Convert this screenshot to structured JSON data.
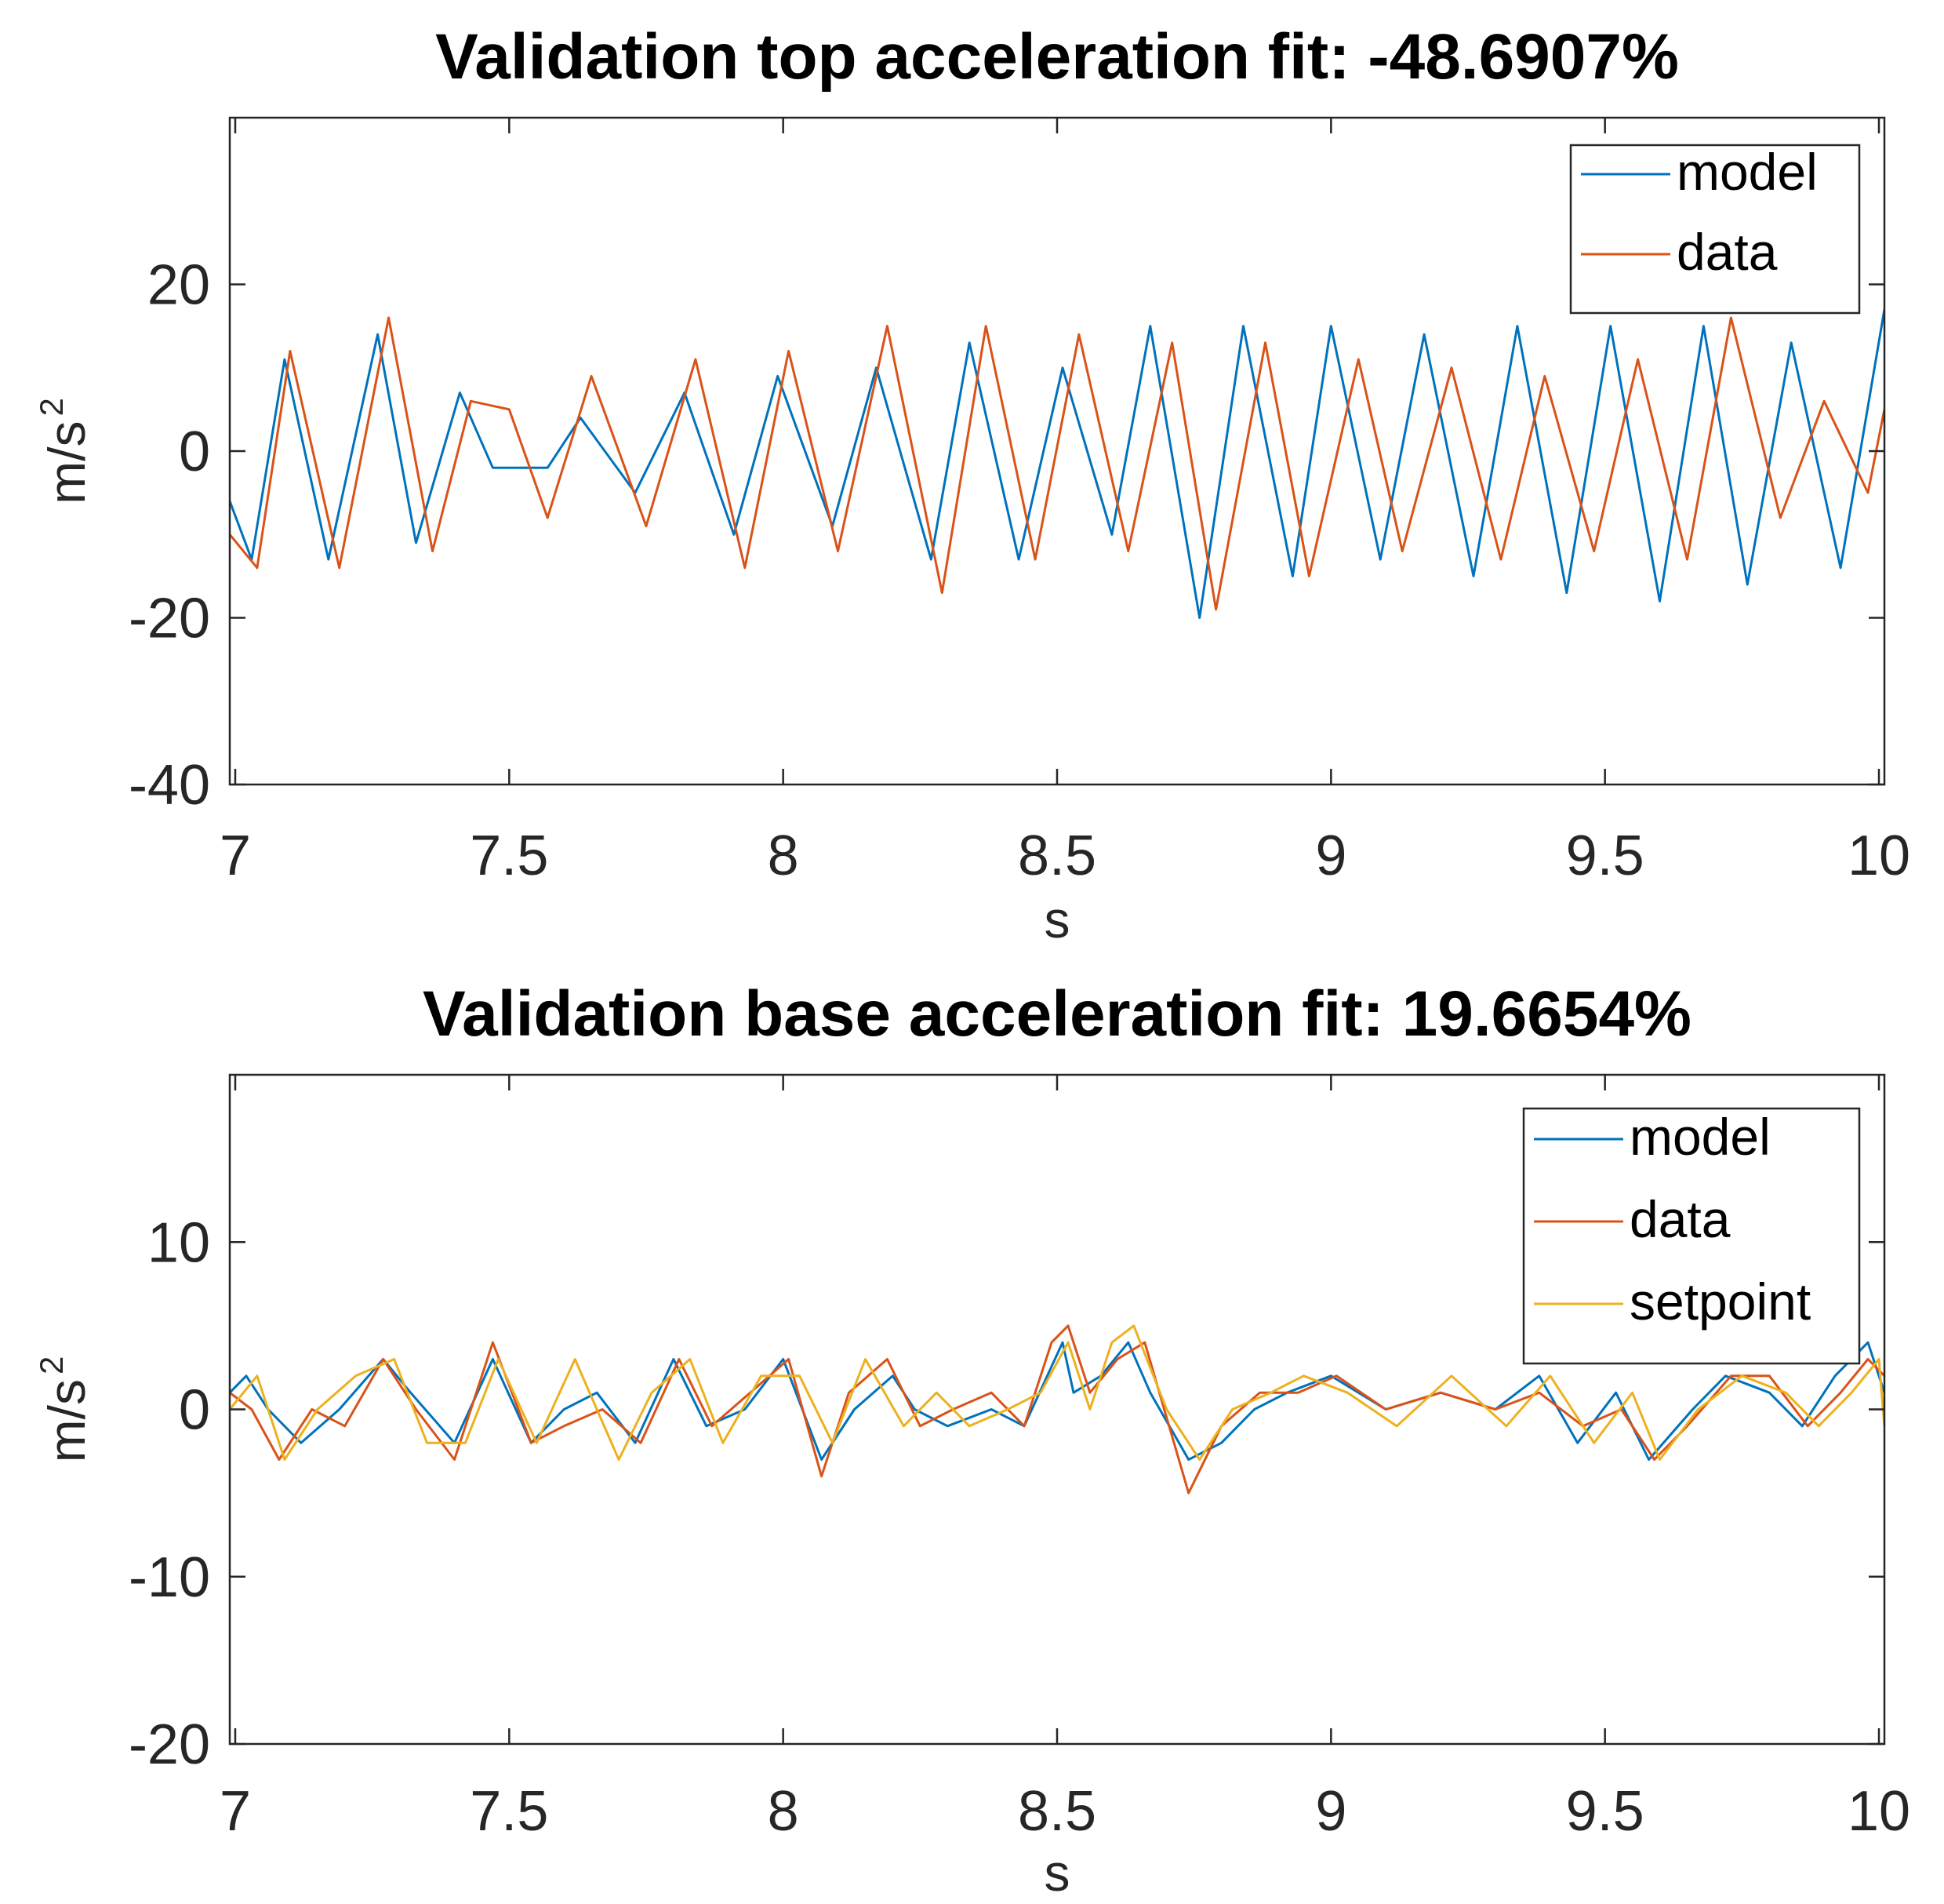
{
  "chart_data": [
    {
      "type": "line",
      "title": "Validation top acceleration fit: -48.6907%",
      "xlabel": "s",
      "ylabel": "m/s",
      "ylabel_superscript": "2",
      "xlim": [
        6.99,
        10.01
      ],
      "ylim": [
        -40,
        40
      ],
      "xticks": [
        7,
        7.5,
        8,
        8.5,
        9,
        9.5,
        10
      ],
      "xtick_labels": [
        "7",
        "7.5",
        "8",
        "8.5",
        "9",
        "9.5",
        "10"
      ],
      "yticks": [
        -40,
        -20,
        0,
        20
      ],
      "ytick_labels": [
        "-40",
        "-20",
        "0",
        "20"
      ],
      "legend": {
        "position": "top-right",
        "entries": [
          "model",
          "data"
        ]
      },
      "series": [
        {
          "name": "model",
          "color": "#0072BD",
          "x": [
            6.99,
            7.03,
            7.09,
            7.17,
            7.26,
            7.33,
            7.41,
            7.47,
            7.57,
            7.63,
            7.73,
            7.82,
            7.91,
            7.99,
            8.09,
            8.17,
            8.27,
            8.34,
            8.43,
            8.51,
            8.6,
            8.67,
            8.76,
            8.84,
            8.93,
            9.0,
            9.09,
            9.17,
            9.26,
            9.34,
            9.43,
            9.51,
            9.6,
            9.68,
            9.76,
            9.84,
            9.93,
            10.01
          ],
          "y": [
            -6,
            -13,
            11,
            -13,
            14,
            -11,
            7,
            -2,
            -2,
            4,
            -5,
            7,
            -10,
            9,
            -9,
            10,
            -13,
            13,
            -13,
            10,
            -10,
            15,
            -20,
            15,
            -15,
            15,
            -13,
            14,
            -15,
            15,
            -17,
            15,
            -18,
            15,
            -16,
            13,
            -14,
            17
          ]
        },
        {
          "name": "data",
          "color": "#D95319",
          "x": [
            6.99,
            7.04,
            7.1,
            7.19,
            7.28,
            7.36,
            7.43,
            7.5,
            7.57,
            7.65,
            7.75,
            7.84,
            7.93,
            8.01,
            8.1,
            8.19,
            8.29,
            8.37,
            8.46,
            8.54,
            8.63,
            8.71,
            8.79,
            8.88,
            8.96,
            9.05,
            9.13,
            9.22,
            9.31,
            9.39,
            9.48,
            9.56,
            9.65,
            9.73,
            9.82,
            9.9,
            9.98,
            10.01
          ],
          "y": [
            -10,
            -14,
            12,
            -14,
            16,
            -12,
            6,
            5,
            -8,
            9,
            -9,
            11,
            -14,
            12,
            -12,
            15,
            -17,
            15,
            -13,
            14,
            -12,
            13,
            -19,
            13,
            -15,
            11,
            -12,
            10,
            -13,
            9,
            -12,
            11,
            -13,
            16,
            -8,
            6,
            -5,
            5
          ]
        }
      ]
    },
    {
      "type": "line",
      "title": "Validation base acceleration fit: 19.6654%",
      "xlabel": "s",
      "ylabel": "m/s",
      "ylabel_superscript": "2",
      "xlim": [
        6.99,
        10.01
      ],
      "ylim": [
        -20,
        20
      ],
      "xticks": [
        7,
        7.5,
        8,
        8.5,
        9,
        9.5,
        10
      ],
      "xtick_labels": [
        "7",
        "7.5",
        "8",
        "8.5",
        "9",
        "9.5",
        "10"
      ],
      "yticks": [
        -20,
        -10,
        0,
        10
      ],
      "ytick_labels": [
        "-20",
        "-10",
        "0",
        "10"
      ],
      "legend": {
        "position": "top-right",
        "entries": [
          "model",
          "data",
          "setpoint"
        ]
      },
      "series": [
        {
          "name": "model",
          "color": "#0072BD",
          "x": [
            6.99,
            7.02,
            7.06,
            7.12,
            7.19,
            7.27,
            7.32,
            7.4,
            7.47,
            7.54,
            7.6,
            7.66,
            7.73,
            7.8,
            7.86,
            7.93,
            8.0,
            8.07,
            8.13,
            8.2,
            8.24,
            8.3,
            8.38,
            8.44,
            8.51,
            8.53,
            8.58,
            8.63,
            8.67,
            8.74,
            8.8,
            8.86,
            8.92,
            9.0,
            9.1,
            9.2,
            9.3,
            9.38,
            9.45,
            9.52,
            9.58,
            9.66,
            9.72,
            9.8,
            9.86,
            9.92,
            9.98,
            10.01
          ],
          "y": [
            1,
            2,
            0,
            -2,
            0,
            3,
            1,
            -2,
            3,
            -2,
            0,
            1,
            -2,
            3,
            -1,
            0,
            3,
            -3,
            0,
            2,
            0,
            -1,
            0,
            -1,
            4,
            1,
            2,
            4,
            1,
            -3,
            -2,
            0,
            1,
            2,
            0,
            1,
            0,
            2,
            -2,
            1,
            -3,
            0,
            2,
            1,
            -1,
            2,
            4,
            1
          ]
        },
        {
          "name": "data",
          "color": "#D95319",
          "x": [
            6.99,
            7.03,
            7.08,
            7.14,
            7.2,
            7.27,
            7.33,
            7.4,
            7.47,
            7.54,
            7.6,
            7.67,
            7.74,
            7.81,
            7.87,
            7.94,
            8.01,
            8.07,
            8.12,
            8.19,
            8.25,
            8.31,
            8.38,
            8.44,
            8.49,
            8.52,
            8.56,
            8.61,
            8.66,
            8.74,
            8.8,
            8.87,
            8.94,
            9.01,
            9.1,
            9.2,
            9.3,
            9.38,
            9.46,
            9.53,
            9.59,
            9.65,
            9.73,
            9.8,
            9.87,
            9.93,
            9.98,
            10.01
          ],
          "y": [
            1,
            0,
            -3,
            0,
            -1,
            3,
            0,
            -3,
            4,
            -2,
            -1,
            0,
            -2,
            3,
            -1,
            1,
            3,
            -4,
            1,
            3,
            -1,
            0,
            1,
            -1,
            4,
            5,
            1,
            3,
            4,
            -5,
            -1,
            1,
            1,
            2,
            0,
            1,
            0,
            1,
            -1,
            0,
            -3,
            -1,
            2,
            2,
            -1,
            1,
            3,
            2
          ]
        },
        {
          "name": "setpoint",
          "color": "#EDB120",
          "x": [
            6.99,
            7.04,
            7.09,
            7.15,
            7.22,
            7.29,
            7.35,
            7.42,
            7.48,
            7.55,
            7.62,
            7.7,
            7.76,
            7.83,
            7.89,
            7.96,
            8.03,
            8.09,
            8.15,
            8.22,
            8.28,
            8.34,
            8.41,
            8.47,
            8.52,
            8.56,
            8.6,
            8.64,
            8.7,
            8.76,
            8.82,
            8.89,
            8.95,
            9.03,
            9.12,
            9.22,
            9.32,
            9.4,
            9.48,
            9.55,
            9.6,
            9.67,
            9.75,
            9.83,
            9.89,
            9.95,
            10.0,
            10.01
          ],
          "y": [
            0,
            2,
            -3,
            0,
            2,
            3,
            -2,
            -2,
            3,
            -2,
            3,
            -3,
            1,
            3,
            -2,
            2,
            2,
            -2,
            3,
            -1,
            1,
            -1,
            0,
            1,
            4,
            0,
            4,
            5,
            0,
            -3,
            0,
            1,
            2,
            1,
            -1,
            2,
            -1,
            2,
            -2,
            1,
            -3,
            0,
            2,
            1,
            -1,
            1,
            3,
            -1
          ]
        }
      ]
    }
  ]
}
